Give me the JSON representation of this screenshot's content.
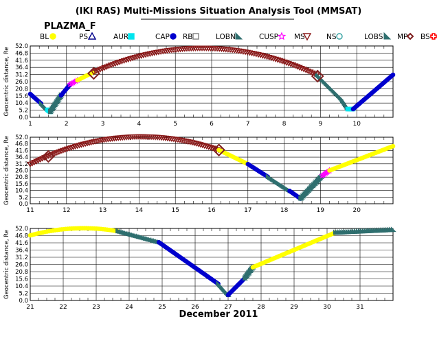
{
  "title": "(IKI RAS) Multi-Missions Situation Analysis Tool (MMSAT)",
  "satellite": "PLAZMA_F",
  "xlabel": "December 2011",
  "ylabel": "Geocentric distance, Re",
  "legend": [
    {
      "label": "BL",
      "marker": "circle",
      "color": "#ffff00",
      "filled": true
    },
    {
      "label": "PS",
      "marker": "triangle-up",
      "color": "#00008b",
      "filled": false
    },
    {
      "label": "AUR",
      "marker": "square",
      "color": "#00e5ee",
      "filled": true
    },
    {
      "label": "CAP",
      "marker": "circle",
      "color": "#0000cd",
      "filled": true
    },
    {
      "label": "RB",
      "marker": "square",
      "color": "#7f7f7f",
      "filled": false
    },
    {
      "label": "LOBN",
      "marker": "lobe",
      "color": "#2f6f6f",
      "filled": true
    },
    {
      "label": "CUSP",
      "marker": "star",
      "color": "#ff00ff",
      "filled": false
    },
    {
      "label": "MS",
      "marker": "triangle-down",
      "color": "#8b1a1a",
      "filled": false
    },
    {
      "label": "NS",
      "marker": "circle",
      "color": "#2f9f9f",
      "filled": false
    },
    {
      "label": "LOBS",
      "marker": "lobe",
      "color": "#2f6f6f",
      "filled": true
    },
    {
      "label": "MP",
      "marker": "diamond",
      "color": "#7f1f1f",
      "filled": false
    },
    {
      "label": "BS",
      "marker": "cross",
      "color": "#ff0000",
      "filled": false
    }
  ],
  "chart_data": [
    {
      "type": "scatter",
      "panel": 1,
      "xlim": [
        1,
        11
      ],
      "ylim": [
        0,
        52
      ],
      "x_ticks": [
        "1",
        "2",
        "3",
        "4",
        "5",
        "6",
        "7",
        "8",
        "9",
        "10"
      ],
      "y_ticks": [
        "0.0",
        "5.2",
        "10.4",
        "15.6",
        "20.8",
        "26.0",
        "31.2",
        "36.4",
        "41.6",
        "46.8",
        "52.0"
      ],
      "segments": [
        {
          "region": "CAP",
          "x": [
            1.0,
            1.3
          ],
          "y": [
            17,
            10
          ]
        },
        {
          "region": "LOBN",
          "x": [
            1.3,
            1.47
          ],
          "y": [
            10,
            5.5
          ]
        },
        {
          "region": "AUR",
          "x": [
            1.47,
            1.55
          ],
          "y": [
            5.5,
            4
          ]
        },
        {
          "region": "LOBN",
          "x": [
            1.55,
            1.85
          ],
          "y": [
            4,
            16
          ]
        },
        {
          "region": "CAP",
          "x": [
            1.85,
            2.1
          ],
          "y": [
            16,
            24
          ]
        },
        {
          "region": "CUSP",
          "x": [
            2.1,
            2.3
          ],
          "y": [
            24,
            27
          ]
        },
        {
          "region": "BL",
          "x": [
            2.3,
            2.75
          ],
          "y": [
            27,
            33
          ]
        },
        {
          "region": "MS",
          "x": [
            2.75,
            8.9
          ],
          "y": [
            33,
            31
          ],
          "peak": 50.5
        },
        {
          "region": "LOBN",
          "x": [
            8.9,
            9.55
          ],
          "y": [
            31,
            14
          ]
        },
        {
          "region": "LOBN",
          "x": [
            9.55,
            9.75
          ],
          "y": [
            14,
            6
          ]
        },
        {
          "region": "AUR",
          "x": [
            9.75,
            9.9
          ],
          "y": [
            6,
            6
          ]
        },
        {
          "region": "CAP",
          "x": [
            9.9,
            11.0
          ],
          "y": [
            6,
            31
          ]
        }
      ],
      "boundaries": [
        {
          "type": "MP",
          "x": 2.75,
          "y": 32
        },
        {
          "type": "MP",
          "x": 8.92,
          "y": 30
        }
      ]
    },
    {
      "type": "scatter",
      "panel": 2,
      "xlim": [
        11,
        21
      ],
      "ylim": [
        0,
        52
      ],
      "x_ticks": [
        "11",
        "12",
        "13",
        "14",
        "15",
        "16",
        "17",
        "18",
        "19",
        "20"
      ],
      "y_ticks": [
        "0.0",
        "5.2",
        "10.4",
        "15.6",
        "20.8",
        "26.0",
        "31.2",
        "36.4",
        "41.6",
        "46.8",
        "52.0"
      ],
      "segments": [
        {
          "region": "MS",
          "x": [
            11.0,
            16.2
          ],
          "y": [
            31,
            42
          ],
          "peak": 52
        },
        {
          "region": "BL",
          "x": [
            16.2,
            17.0
          ],
          "y": [
            42,
            31
          ]
        },
        {
          "region": "CAP",
          "x": [
            17.0,
            17.55
          ],
          "y": [
            31,
            21
          ]
        },
        {
          "region": "LOBN",
          "x": [
            17.55,
            18.15
          ],
          "y": [
            21,
            10
          ]
        },
        {
          "region": "CAP",
          "x": [
            18.15,
            18.45
          ],
          "y": [
            10,
            4
          ]
        },
        {
          "region": "LOBN",
          "x": [
            18.45,
            19.05
          ],
          "y": [
            4,
            22
          ]
        },
        {
          "region": "CUSP",
          "x": [
            19.05,
            19.25
          ],
          "y": [
            22,
            26
          ]
        },
        {
          "region": "BL",
          "x": [
            19.25,
            21.0
          ],
          "y": [
            26,
            45
          ]
        }
      ],
      "boundaries": [
        {
          "type": "MP",
          "x": 11.5,
          "y": 37
        },
        {
          "type": "MP",
          "x": 16.2,
          "y": 42
        }
      ]
    },
    {
      "type": "scatter",
      "panel": 3,
      "xlim": [
        21,
        32
      ],
      "ylim": [
        0,
        52
      ],
      "x_ticks": [
        "21",
        "22",
        "23",
        "24",
        "25",
        "26",
        "27",
        "28",
        "29",
        "30",
        "31"
      ],
      "y_ticks": [
        "0.0",
        "5.2",
        "10.4",
        "15.6",
        "20.8",
        "26.0",
        "31.2",
        "36.4",
        "41.6",
        "46.8",
        "52.0"
      ],
      "segments": [
        {
          "region": "BL",
          "x": [
            21.0,
            23.65
          ],
          "y": [
            47,
            50
          ],
          "peak": 52
        },
        {
          "region": "LOBN",
          "x": [
            23.65,
            24.9
          ],
          "y": [
            50,
            42
          ]
        },
        {
          "region": "CAP",
          "x": [
            24.9,
            26.7
          ],
          "y": [
            42,
            12
          ]
        },
        {
          "region": "LOBN",
          "x": [
            26.7,
            27.0
          ],
          "y": [
            12,
            4
          ]
        },
        {
          "region": "CAP",
          "x": [
            27.0,
            27.5
          ],
          "y": [
            4,
            16
          ]
        },
        {
          "region": "LOBN",
          "x": [
            27.5,
            27.75
          ],
          "y": [
            16,
            24
          ]
        },
        {
          "region": "BL",
          "x": [
            27.75,
            30.25
          ],
          "y": [
            24,
            49
          ]
        },
        {
          "region": "LOBN",
          "x": [
            30.25,
            32.0
          ],
          "y": [
            49,
            51
          ]
        }
      ],
      "boundaries": []
    }
  ]
}
